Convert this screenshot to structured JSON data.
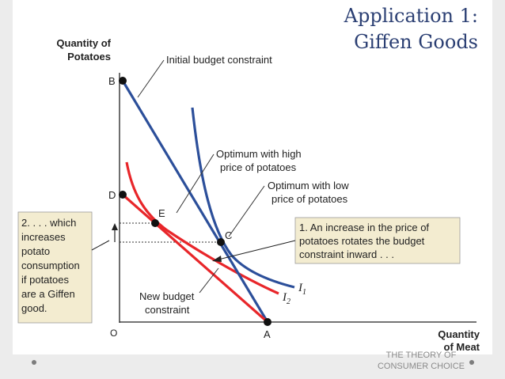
{
  "slide": {
    "title_line1": "Application 1:",
    "title_line2": "Giffen Goods",
    "footer_line1": "THE THEORY OF",
    "footer_line2": "CONSUMER CHOICE"
  },
  "diagram": {
    "y_axis_line1": "Quantity of",
    "y_axis_line2": "Potatoes",
    "x_axis_line1": "Quantity",
    "x_axis_line2": "of Meat",
    "origin": "O",
    "point_labels": {
      "A": "A",
      "B": "B",
      "C": "C",
      "D": "D",
      "E": "E"
    },
    "annotations": {
      "initial_budget": "Initial budget constraint",
      "optimum_high_1": "Optimum with high",
      "optimum_high_2": "price of potatoes",
      "optimum_low_1": "Optimum with low",
      "optimum_low_2": "price of potatoes",
      "new_budget_1": "New budget",
      "new_budget_2": "constraint"
    },
    "curve_labels": {
      "i1": "I",
      "i1_sub": "1",
      "i2": "I",
      "i2_sub": "2"
    },
    "callout_right": [
      "1. An increase in the price of",
      "potatoes rotates the budget",
      "constraint inward . . ."
    ],
    "callout_left": [
      "2. . . . which",
      "increases",
      "potato",
      "consumption",
      "if potatoes",
      "are a Giffen",
      "good."
    ],
    "colors": {
      "initial_budget_and_i1": "#2c4f9a",
      "new_budget_and_i2": "#e8262a",
      "callout_fill": "#f3ecd0"
    }
  }
}
